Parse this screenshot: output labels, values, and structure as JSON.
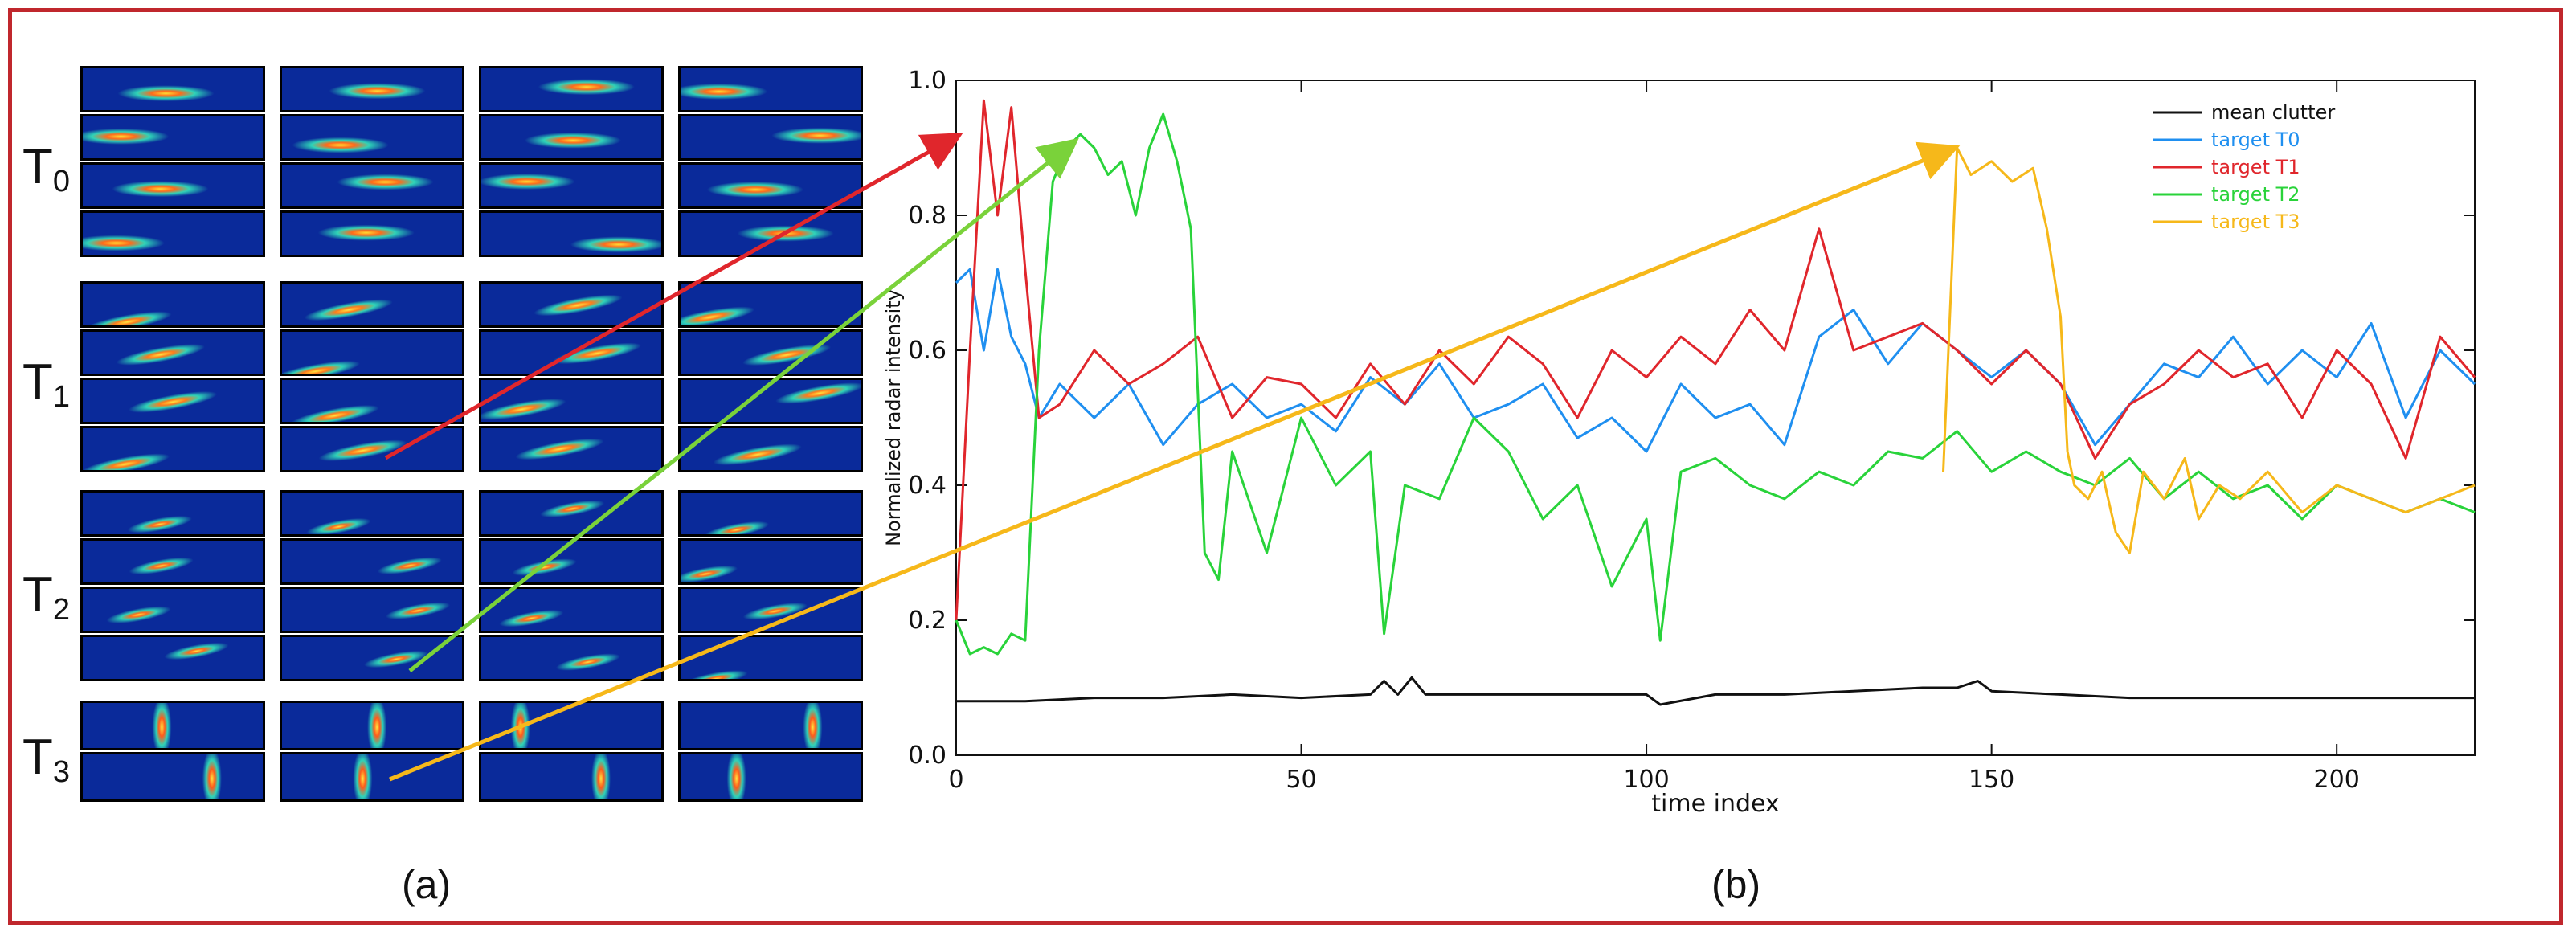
{
  "panel_a": {
    "caption": "(a)",
    "groups": [
      {
        "base": "T",
        "sub": "0"
      },
      {
        "base": "T",
        "sub": "1"
      },
      {
        "base": "T",
        "sub": "2"
      },
      {
        "base": "T",
        "sub": "3"
      }
    ]
  },
  "panel_b": {
    "caption": "(b)"
  },
  "chart_data": {
    "type": "line",
    "xlabel": "time index",
    "ylabel": "Normalized radar intensity",
    "xlim": [
      0,
      220
    ],
    "ylim": [
      0.0,
      1.0
    ],
    "xticks": [
      0,
      50,
      100,
      150,
      200
    ],
    "yticks": [
      0.0,
      0.2,
      0.4,
      0.6,
      0.8,
      1.0
    ],
    "ytick_labels": [
      "0.0",
      "0.2",
      "0.4",
      "0.6",
      "0.8",
      "1.0"
    ],
    "grid": false,
    "legend_position": "top-right",
    "series": [
      {
        "name": "mean clutter",
        "color": "#111111",
        "x": [
          0,
          10,
          20,
          30,
          40,
          50,
          60,
          62,
          64,
          66,
          68,
          70,
          80,
          90,
          100,
          102,
          110,
          120,
          130,
          140,
          145,
          148,
          150,
          160,
          170,
          180,
          190,
          200,
          210,
          220
        ],
        "y": [
          0.08,
          0.08,
          0.085,
          0.085,
          0.09,
          0.085,
          0.09,
          0.11,
          0.09,
          0.115,
          0.09,
          0.09,
          0.09,
          0.09,
          0.09,
          0.075,
          0.09,
          0.09,
          0.095,
          0.1,
          0.1,
          0.11,
          0.095,
          0.09,
          0.085,
          0.085,
          0.085,
          0.085,
          0.085,
          0.085
        ]
      },
      {
        "name": "target T0",
        "color": "#1f8ff0",
        "x": [
          0,
          2,
          4,
          6,
          8,
          10,
          12,
          15,
          20,
          25,
          30,
          35,
          40,
          45,
          50,
          55,
          60,
          65,
          70,
          75,
          80,
          85,
          90,
          95,
          100,
          105,
          110,
          115,
          120,
          125,
          130,
          135,
          140,
          145,
          150,
          155,
          160,
          165,
          170,
          175,
          180,
          185,
          190,
          195,
          200,
          205,
          210,
          215,
          220
        ],
        "y": [
          0.7,
          0.72,
          0.6,
          0.72,
          0.62,
          0.58,
          0.5,
          0.55,
          0.5,
          0.55,
          0.46,
          0.52,
          0.55,
          0.5,
          0.52,
          0.48,
          0.56,
          0.52,
          0.58,
          0.5,
          0.52,
          0.55,
          0.47,
          0.5,
          0.45,
          0.55,
          0.5,
          0.52,
          0.46,
          0.62,
          0.66,
          0.58,
          0.64,
          0.6,
          0.56,
          0.6,
          0.55,
          0.46,
          0.52,
          0.58,
          0.56,
          0.62,
          0.55,
          0.6,
          0.56,
          0.64,
          0.5,
          0.6,
          0.55
        ]
      },
      {
        "name": "target T1",
        "color": "#e0262c",
        "x": [
          0,
          2,
          4,
          6,
          8,
          10,
          12,
          15,
          20,
          25,
          30,
          35,
          40,
          45,
          50,
          55,
          60,
          65,
          70,
          75,
          80,
          85,
          90,
          95,
          100,
          105,
          110,
          115,
          120,
          125,
          130,
          135,
          140,
          145,
          150,
          155,
          160,
          165,
          170,
          175,
          180,
          185,
          190,
          195,
          200,
          205,
          210,
          215,
          220
        ],
        "y": [
          0.2,
          0.6,
          0.97,
          0.8,
          0.96,
          0.72,
          0.5,
          0.52,
          0.6,
          0.55,
          0.58,
          0.62,
          0.5,
          0.56,
          0.55,
          0.5,
          0.58,
          0.52,
          0.6,
          0.55,
          0.62,
          0.58,
          0.5,
          0.6,
          0.56,
          0.62,
          0.58,
          0.66,
          0.6,
          0.78,
          0.6,
          0.62,
          0.64,
          0.6,
          0.55,
          0.6,
          0.55,
          0.44,
          0.52,
          0.55,
          0.6,
          0.56,
          0.58,
          0.5,
          0.6,
          0.55,
          0.44,
          0.62,
          0.56
        ]
      },
      {
        "name": "target T2",
        "color": "#29d33a",
        "x": [
          0,
          2,
          4,
          6,
          8,
          10,
          12,
          14,
          16,
          18,
          20,
          22,
          24,
          26,
          28,
          30,
          32,
          34,
          36,
          38,
          40,
          45,
          50,
          55,
          60,
          62,
          65,
          70,
          75,
          80,
          85,
          90,
          95,
          100,
          102,
          105,
          110,
          115,
          120,
          125,
          130,
          135,
          140,
          145,
          150,
          155,
          160,
          165,
          170,
          175,
          180,
          185,
          190,
          195,
          200,
          205,
          210,
          215,
          220
        ],
        "y": [
          0.2,
          0.15,
          0.16,
          0.15,
          0.18,
          0.17,
          0.6,
          0.85,
          0.9,
          0.92,
          0.9,
          0.86,
          0.88,
          0.8,
          0.9,
          0.95,
          0.88,
          0.78,
          0.3,
          0.26,
          0.45,
          0.3,
          0.5,
          0.4,
          0.45,
          0.18,
          0.4,
          0.38,
          0.5,
          0.45,
          0.35,
          0.4,
          0.25,
          0.35,
          0.17,
          0.42,
          0.44,
          0.4,
          0.38,
          0.42,
          0.4,
          0.45,
          0.44,
          0.48,
          0.42,
          0.45,
          0.42,
          0.4,
          0.44,
          0.38,
          0.42,
          0.38,
          0.4,
          0.35,
          0.4,
          0.38,
          0.36,
          0.38,
          0.36
        ]
      },
      {
        "name": "target T3",
        "color": "#f6b81a",
        "x": [
          143,
          145,
          147,
          150,
          153,
          156,
          158,
          160,
          161,
          162,
          164,
          166,
          168,
          170,
          172,
          175,
          178,
          180,
          183,
          186,
          190,
          195,
          200,
          205,
          210,
          215,
          220
        ],
        "y": [
          0.42,
          0.9,
          0.86,
          0.88,
          0.85,
          0.87,
          0.78,
          0.65,
          0.45,
          0.4,
          0.38,
          0.42,
          0.33,
          0.3,
          0.42,
          0.38,
          0.44,
          0.35,
          0.4,
          0.38,
          0.42,
          0.36,
          0.4,
          0.38,
          0.36,
          0.38,
          0.4
        ]
      }
    ]
  }
}
